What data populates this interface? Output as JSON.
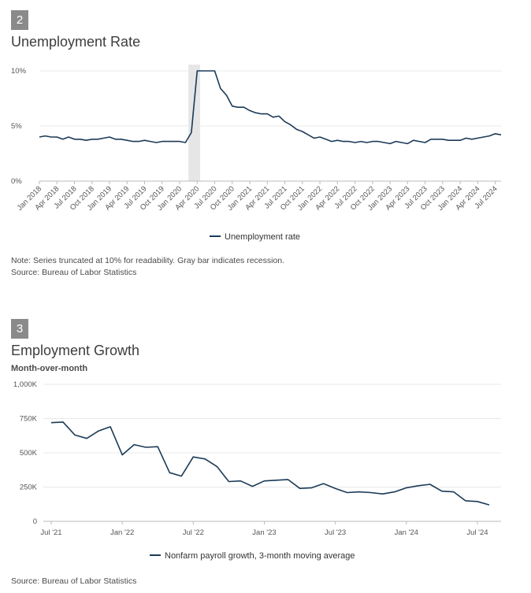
{
  "chart_data": [
    {
      "type": "line",
      "badge": "2",
      "title": "Unemployment Rate",
      "yticks": [
        "10%",
        "5%",
        "0%"
      ],
      "ytick_values": [
        10,
        5,
        0
      ],
      "ylim": [
        0,
        10
      ],
      "x_start": "Jan 2018",
      "xtick_labels": [
        "Jan 2018",
        "Apr 2018",
        "Jul 2018",
        "Oct 2018",
        "Jan 2019",
        "Apr 2019",
        "Jul 2019",
        "Oct 2019",
        "Jan 2020",
        "Apr 2020",
        "Jul 2020",
        "Oct 2020",
        "Jan 2021",
        "Apr 2021",
        "Jul 2021",
        "Oct 2021",
        "Jan 2022",
        "Apr 2022",
        "Jul 2022",
        "Oct 2022",
        "Jan 2023",
        "Apr 2023",
        "Jul 2023",
        "Oct 2023",
        "Jan 2024",
        "Apr 2024",
        "Jul 2024"
      ],
      "recession": [
        "Mar 2020",
        "Apr 2020"
      ],
      "series": [
        {
          "name": "Unemployment rate",
          "color": "#1b3a57",
          "values": [
            4.0,
            4.1,
            4.0,
            4.0,
            3.8,
            4.0,
            3.8,
            3.8,
            3.7,
            3.8,
            3.8,
            3.9,
            4.0,
            3.8,
            3.8,
            3.7,
            3.6,
            3.6,
            3.7,
            3.6,
            3.5,
            3.6,
            3.6,
            3.6,
            3.6,
            3.5,
            4.4,
            10.0,
            10.0,
            10.0,
            10.0,
            8.4,
            7.8,
            6.8,
            6.7,
            6.7,
            6.4,
            6.2,
            6.1,
            6.1,
            5.8,
            5.9,
            5.4,
            5.1,
            4.7,
            4.5,
            4.2,
            3.9,
            4.0,
            3.8,
            3.6,
            3.7,
            3.6,
            3.6,
            3.5,
            3.6,
            3.5,
            3.6,
            3.6,
            3.5,
            3.4,
            3.6,
            3.5,
            3.4,
            3.7,
            3.6,
            3.5,
            3.8,
            3.8,
            3.8,
            3.7,
            3.7,
            3.7,
            3.9,
            3.8,
            3.9,
            4.0,
            4.1,
            4.3,
            4.2
          ]
        }
      ],
      "legend": "Unemployment rate",
      "note": "Note: Series truncated at 10% for readability. Gray bar indicates recession.",
      "source": "Source: Bureau of Labor Statistics"
    },
    {
      "type": "line",
      "badge": "3",
      "title": "Employment Growth",
      "subtitle": "Month-over-month",
      "yticks": [
        "1,000K",
        "750K",
        "500K",
        "250K",
        "0"
      ],
      "ytick_values": [
        1000,
        750,
        500,
        250,
        0
      ],
      "ylim": [
        0,
        1000
      ],
      "xtick_labels": [
        "Jul '21",
        "Jan '22",
        "Jul '22",
        "Jan '23",
        "Jul '23",
        "Jan '24",
        "Jul '24"
      ],
      "xtick_month_index": [
        0,
        6,
        12,
        18,
        24,
        30,
        36
      ],
      "series": [
        {
          "name": "Nonfarm payroll growth, 3-month moving average",
          "color": "#1b3a57",
          "values": [
            720,
            725,
            630,
            605,
            660,
            690,
            485,
            560,
            540,
            545,
            355,
            330,
            470,
            455,
            400,
            290,
            295,
            255,
            295,
            300,
            305,
            240,
            245,
            275,
            240,
            210,
            215,
            210,
            200,
            215,
            245,
            260,
            270,
            220,
            215,
            150,
            145,
            120
          ]
        }
      ],
      "legend": "Nonfarm payroll growth, 3-month moving average",
      "source": "Source: Bureau of Labor Statistics"
    }
  ]
}
